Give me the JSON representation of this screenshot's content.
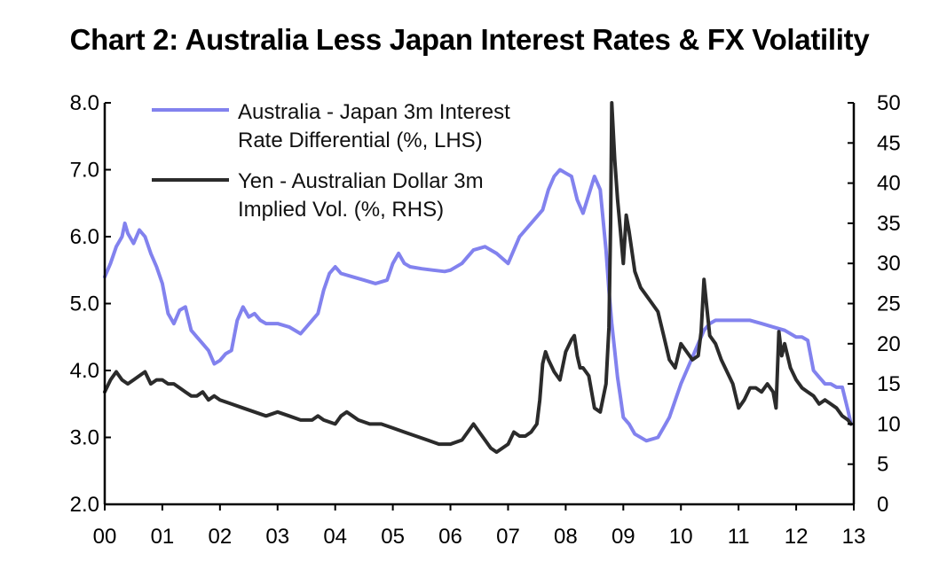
{
  "chart_data": {
    "type": "line",
    "title": "Chart 2: Australia Less Japan Interest Rates & FX Volatility",
    "x_tick_labels": [
      "00",
      "01",
      "02",
      "03",
      "04",
      "05",
      "06",
      "07",
      "08",
      "09",
      "10",
      "11",
      "12",
      "13"
    ],
    "x_range": [
      2000,
      2013
    ],
    "left_axis": {
      "range": [
        2.0,
        8.0
      ],
      "tick_labels": [
        "2.0",
        "3.0",
        "4.0",
        "5.0",
        "6.0",
        "7.0",
        "8.0"
      ]
    },
    "right_axis": {
      "range": [
        0,
        50
      ],
      "tick_labels": [
        "0",
        "5",
        "10",
        "15",
        "20",
        "25",
        "30",
        "35",
        "40",
        "45",
        "50"
      ]
    },
    "grid": false,
    "legend_position": "top-left",
    "series": [
      {
        "name": "Australia - Japan 3m Interest Rate Differential (%, LHS)",
        "legend_lines": [
          "Australia - Japan 3m Interest",
          "Rate Differential (%, LHS)"
        ],
        "axis": "left",
        "color": "#8282ee",
        "x": [
          2000.0,
          2000.1,
          2000.2,
          2000.3,
          2000.35,
          2000.4,
          2000.5,
          2000.6,
          2000.7,
          2000.8,
          2000.9,
          2001.0,
          2001.1,
          2001.2,
          2001.3,
          2001.4,
          2001.5,
          2001.6,
          2001.7,
          2001.8,
          2001.9,
          2002.0,
          2002.1,
          2002.2,
          2002.3,
          2002.4,
          2002.5,
          2002.6,
          2002.7,
          2002.8,
          2003.0,
          2003.2,
          2003.4,
          2003.6,
          2003.7,
          2003.8,
          2003.9,
          2004.0,
          2004.1,
          2004.3,
          2004.5,
          2004.7,
          2004.9,
          2005.0,
          2005.1,
          2005.2,
          2005.3,
          2005.5,
          2005.7,
          2005.9,
          2006.0,
          2006.2,
          2006.3,
          2006.4,
          2006.6,
          2006.8,
          2007.0,
          2007.2,
          2007.3,
          2007.5,
          2007.6,
          2007.7,
          2007.8,
          2007.9,
          2008.0,
          2008.1,
          2008.2,
          2008.3,
          2008.5,
          2008.6,
          2008.7,
          2008.75,
          2008.8,
          2008.85,
          2008.9,
          2008.95,
          2009.0,
          2009.1,
          2009.2,
          2009.4,
          2009.6,
          2009.7,
          2009.8,
          2010.0,
          2010.1,
          2010.2,
          2010.3,
          2010.4,
          2010.5,
          2010.6,
          2010.7,
          2010.8,
          2011.0,
          2011.2,
          2011.4,
          2011.6,
          2011.8,
          2011.9,
          2012.0,
          2012.1,
          2012.2,
          2012.3,
          2012.4,
          2012.45,
          2012.5,
          2012.6,
          2012.7,
          2012.8,
          2012.9,
          2012.95
        ],
        "values": [
          5.4,
          5.6,
          5.85,
          6.0,
          6.2,
          6.05,
          5.9,
          6.1,
          6.0,
          5.75,
          5.55,
          5.3,
          4.85,
          4.7,
          4.9,
          4.95,
          4.6,
          4.5,
          4.4,
          4.3,
          4.1,
          4.15,
          4.25,
          4.3,
          4.75,
          4.95,
          4.8,
          4.85,
          4.75,
          4.7,
          4.7,
          4.65,
          4.55,
          4.75,
          4.85,
          5.2,
          5.45,
          5.55,
          5.45,
          5.4,
          5.35,
          5.3,
          5.35,
          5.6,
          5.75,
          5.6,
          5.55,
          5.52,
          5.5,
          5.48,
          5.5,
          5.6,
          5.7,
          5.8,
          5.85,
          5.75,
          5.6,
          6.0,
          6.1,
          6.3,
          6.4,
          6.7,
          6.9,
          7.0,
          6.95,
          6.9,
          6.55,
          6.35,
          6.9,
          6.7,
          5.8,
          5.2,
          4.7,
          4.3,
          3.9,
          3.6,
          3.3,
          3.2,
          3.05,
          2.95,
          3.0,
          3.15,
          3.3,
          3.8,
          4.0,
          4.2,
          4.4,
          4.6,
          4.7,
          4.75,
          4.75,
          4.75,
          4.75,
          4.75,
          4.7,
          4.65,
          4.6,
          4.55,
          4.5,
          4.5,
          4.45,
          4.0,
          3.9,
          3.85,
          3.8,
          3.8,
          3.75,
          3.75,
          3.4,
          3.2
        ]
      },
      {
        "name": "Yen - Australian Dollar 3m Implied Vol. (%, RHS)",
        "legend_lines": [
          "Yen - Australian Dollar 3m",
          "Implied Vol. (%, RHS)"
        ],
        "axis": "right",
        "color": "#2b2b2b",
        "x": [
          2000.0,
          2000.1,
          2000.2,
          2000.3,
          2000.4,
          2000.5,
          2000.6,
          2000.7,
          2000.8,
          2000.9,
          2001.0,
          2001.1,
          2001.2,
          2001.3,
          2001.4,
          2001.5,
          2001.6,
          2001.7,
          2001.8,
          2001.9,
          2002.0,
          2002.2,
          2002.4,
          2002.6,
          2002.8,
          2003.0,
          2003.2,
          2003.4,
          2003.6,
          2003.7,
          2003.8,
          2004.0,
          2004.1,
          2004.2,
          2004.3,
          2004.4,
          2004.6,
          2004.8,
          2005.0,
          2005.2,
          2005.4,
          2005.6,
          2005.8,
          2006.0,
          2006.2,
          2006.3,
          2006.4,
          2006.5,
          2006.6,
          2006.7,
          2006.8,
          2006.9,
          2007.0,
          2007.1,
          2007.2,
          2007.3,
          2007.4,
          2007.5,
          2007.55,
          2007.6,
          2007.65,
          2007.7,
          2007.8,
          2007.9,
          2008.0,
          2008.1,
          2008.15,
          2008.2,
          2008.25,
          2008.3,
          2008.4,
          2008.5,
          2008.6,
          2008.7,
          2008.75,
          2008.78,
          2008.8,
          2008.85,
          2008.9,
          2008.95,
          2009.0,
          2009.05,
          2009.1,
          2009.2,
          2009.3,
          2009.4,
          2009.5,
          2009.6,
          2009.7,
          2009.8,
          2009.9,
          2010.0,
          2010.1,
          2010.2,
          2010.3,
          2010.35,
          2010.4,
          2010.45,
          2010.5,
          2010.6,
          2010.7,
          2010.8,
          2010.9,
          2011.0,
          2011.1,
          2011.2,
          2011.3,
          2011.4,
          2011.5,
          2011.6,
          2011.65,
          2011.7,
          2011.75,
          2011.8,
          2011.9,
          2012.0,
          2012.1,
          2012.2,
          2012.3,
          2012.4,
          2012.5,
          2012.6,
          2012.7,
          2012.8,
          2012.9,
          2012.95
        ],
        "values": [
          14.0,
          15.5,
          16.5,
          15.5,
          15.0,
          15.5,
          16.0,
          16.5,
          15.0,
          15.5,
          15.5,
          15.0,
          15.0,
          14.5,
          14.0,
          13.5,
          13.5,
          14.0,
          13.0,
          13.5,
          13.0,
          12.5,
          12.0,
          11.5,
          11.0,
          11.5,
          11.0,
          10.5,
          10.5,
          11.0,
          10.5,
          10.0,
          11.0,
          11.5,
          11.0,
          10.5,
          10.0,
          10.0,
          9.5,
          9.0,
          8.5,
          8.0,
          7.5,
          7.5,
          8.0,
          9.0,
          10.0,
          9.0,
          8.0,
          7.0,
          6.5,
          7.0,
          7.5,
          9.0,
          8.5,
          8.5,
          9.0,
          10.0,
          13.0,
          17.5,
          19.0,
          18.0,
          16.5,
          15.5,
          19.0,
          20.5,
          21.0,
          18.5,
          17.0,
          17.0,
          16.0,
          12.0,
          11.5,
          15.0,
          22.0,
          35.0,
          50.0,
          43.0,
          38.0,
          34.0,
          30.0,
          36.0,
          34.0,
          29.0,
          27.0,
          26.0,
          25.0,
          24.0,
          21.0,
          18.0,
          17.0,
          20.0,
          19.0,
          18.0,
          18.5,
          21.5,
          28.0,
          24.5,
          21.0,
          20.0,
          18.0,
          16.5,
          15.0,
          12.0,
          13.0,
          14.5,
          14.5,
          14.0,
          15.0,
          14.0,
          12.0,
          21.5,
          18.5,
          20.0,
          17.0,
          15.5,
          14.5,
          14.0,
          13.5,
          12.5,
          13.0,
          12.5,
          12.0,
          11.0,
          10.5,
          10.0
        ]
      }
    ]
  }
}
